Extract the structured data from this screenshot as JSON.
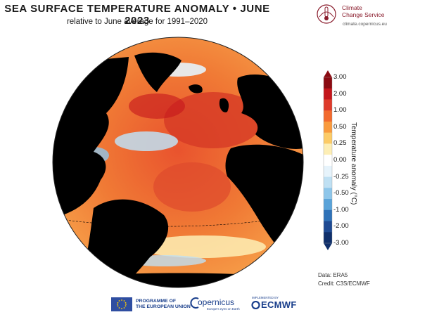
{
  "header": {
    "title": "SEA SURFACE TEMPERATURE ANOMALY • JUNE 2023",
    "subtitle": "relative to June average for 1991–2020"
  },
  "logo": {
    "name_line1": "Climate",
    "name_line2": "Change Service",
    "url": "climate.copernicus.eu"
  },
  "colorbar": {
    "title": "Temperature anomaly (°C)",
    "ticks": [
      "3.00",
      "2.00",
      "1.00",
      "0.50",
      "0.25",
      "0.00",
      "-0.25",
      "-0.50",
      "-1.00",
      "-2.00",
      "-3.00"
    ],
    "colors": [
      "#8b0b12",
      "#c4161c",
      "#de3b2b",
      "#f26a2e",
      "#f99a3d",
      "#fccb67",
      "#fdeeb5",
      "#ffffff",
      "#e6f3fb",
      "#bfe0f3",
      "#8ec6ea",
      "#5aa3d9",
      "#2f72b8",
      "#1e4a93",
      "#0f2f6b"
    ]
  },
  "credits": {
    "data": "Data: ERA5",
    "credit": "Credit: C3S/ECMWF"
  },
  "footer": {
    "eu_line1": "PROGRAMME OF",
    "eu_line2": "THE EUROPEAN UNION",
    "copernicus": "opernicus",
    "copernicus_sub": "Europe's eyes on Earth",
    "ecmwf_small": "IMPLEMENTED BY",
    "ecmwf": "ECMWF"
  }
}
